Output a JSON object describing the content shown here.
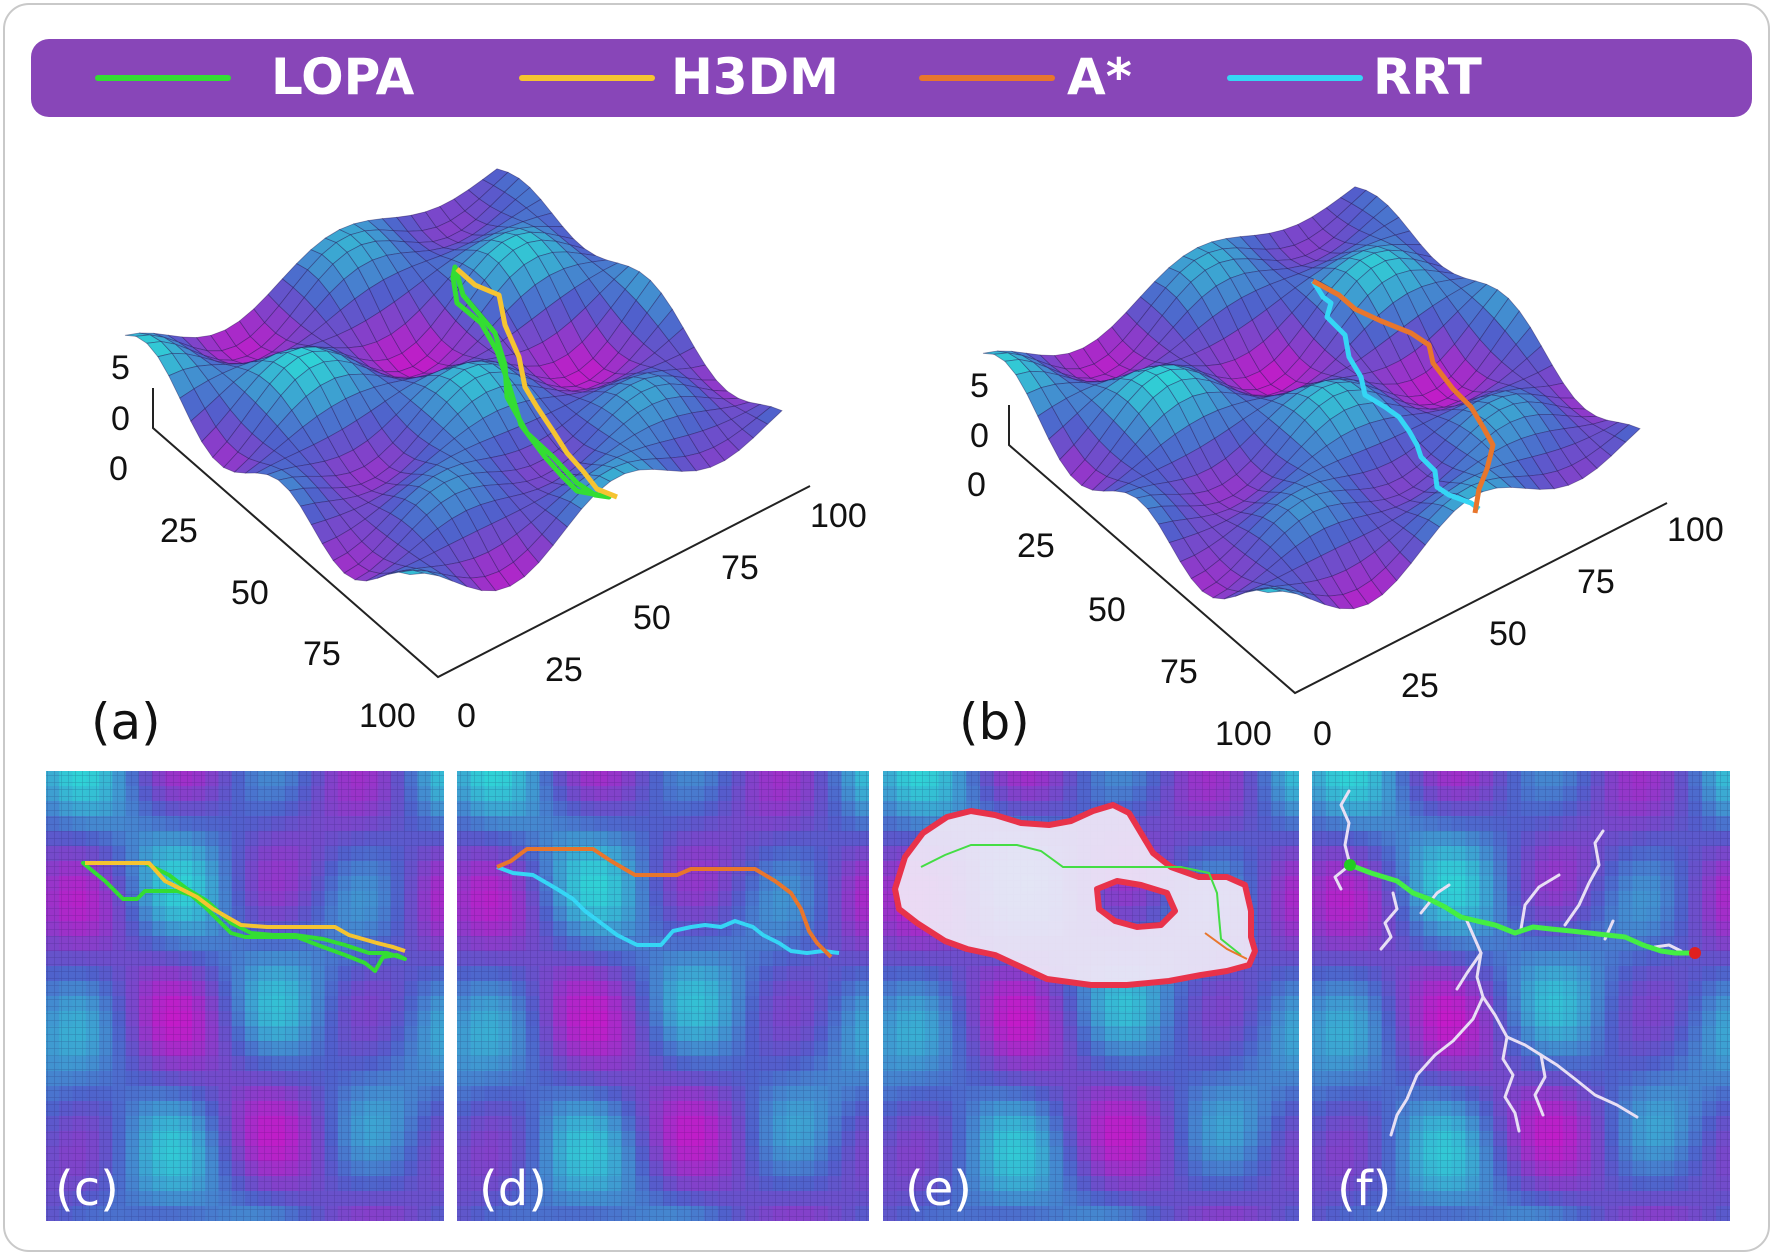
{
  "legend": [
    {
      "label": "LOPA",
      "color": "#33dd33"
    },
    {
      "label": "H3DM",
      "color": "#f5c431"
    },
    {
      "label": "A*",
      "color": "#e8762c"
    },
    {
      "label": "RRT",
      "color": "#35d6f5"
    }
  ],
  "panel_labels": [
    "(a)",
    "(b)",
    "(c)",
    "(d)",
    "(e)",
    "(f)"
  ],
  "axis_ticks": {
    "z": [
      "5",
      "0"
    ],
    "left": [
      "0",
      "25",
      "50",
      "75",
      "100"
    ],
    "right": [
      "0",
      "25",
      "50",
      "75",
      "100"
    ]
  },
  "colors": {
    "surface_low": "#c41ac8",
    "surface_mid": "#5060cc",
    "surface_high": "#2ed6d6",
    "frontier": "#e8324a",
    "explored": "#eee6f6",
    "start": "#22cc22",
    "goal": "#e02020"
  }
}
